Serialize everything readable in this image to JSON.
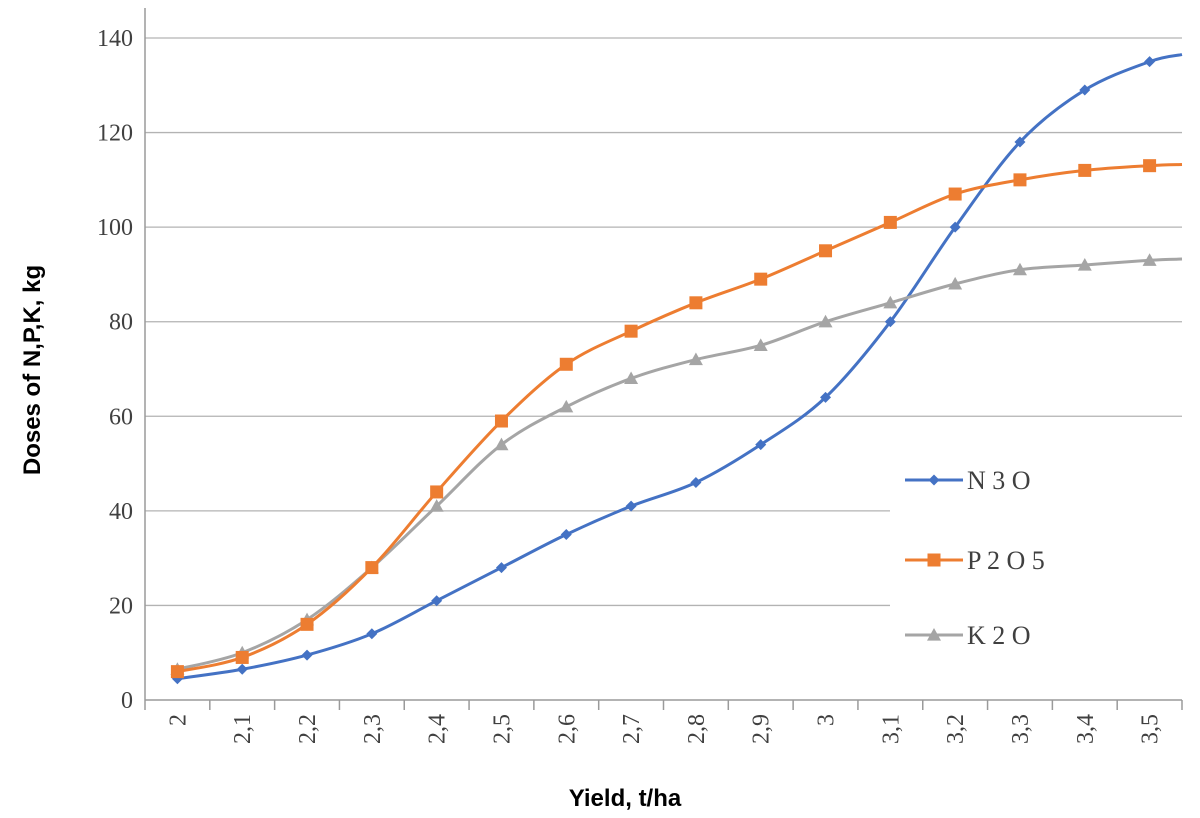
{
  "chart_data": {
    "type": "line",
    "xlabel": "Yield, t/ha",
    "ylabel": "Doses of N,P,K, kg",
    "categories": [
      "2",
      "2,1",
      "2,2",
      "2,3",
      "2,4",
      "2,5",
      "2,6",
      "2,7",
      "2,8",
      "2,9",
      "3",
      "3,1",
      "3,2",
      "3,3",
      "3,4",
      "3,5"
    ],
    "ylim": [
      0,
      140
    ],
    "yticks": [
      "0",
      "20",
      "40",
      "60",
      "80",
      "100",
      "120",
      "140"
    ],
    "grid": true,
    "legend_position": "right",
    "series": [
      {
        "name": "N 3 O",
        "color": "#4472C4",
        "marker": "diamond",
        "values": [
          4.5,
          6.5,
          9.5,
          14,
          21,
          28,
          35,
          41,
          46,
          54,
          64,
          80,
          100,
          118,
          129,
          135
        ]
      },
      {
        "name": "P 2 O 5",
        "color": "#ED7D31",
        "marker": "square",
        "values": [
          6,
          9,
          16,
          28,
          44,
          59,
          71,
          78,
          84,
          89,
          95,
          101,
          107,
          110,
          112,
          113
        ]
      },
      {
        "name": "K 2 O",
        "color": "#A5A5A5",
        "marker": "triangle",
        "values": [
          6.5,
          10,
          17,
          28,
          41,
          54,
          62,
          68,
          72,
          75,
          80,
          84,
          88,
          91,
          92,
          93
        ]
      }
    ]
  }
}
